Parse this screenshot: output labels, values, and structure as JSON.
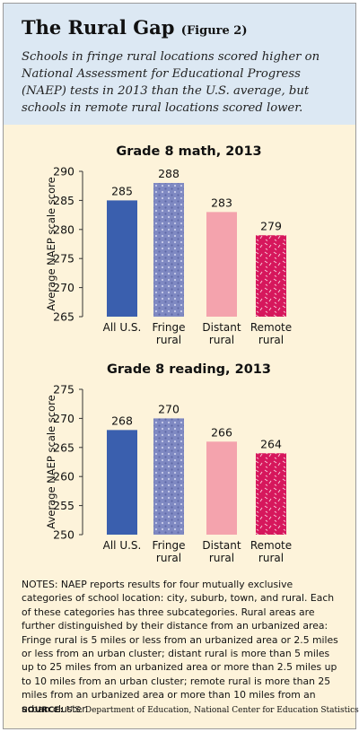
{
  "header": {
    "title": "The Rural Gap",
    "figure_label": "(Figure 2)",
    "subtitle": "Schools in fringe rural locations scored higher on National Assessment for Educational Progress (NAEP) tests in 2013 than the U.S. average, but schools in remote rural locations scored lower."
  },
  "colors": {
    "header_bg": "#dce8f3",
    "panel_bg": "#fdf3da",
    "all_us": "#3a5fae",
    "fringe": "#7f89c2",
    "distant": "#f4a3ad",
    "remote": "#d6175c"
  },
  "chart_data": [
    {
      "type": "bar",
      "title": "Grade 8 math, 2013",
      "ylabel": "Average NAEP scale score",
      "categories": [
        "All U.S.",
        "Fringe rural",
        "Distant rural",
        "Remote rural"
      ],
      "category_lines": [
        [
          "All U.S."
        ],
        [
          "Fringe",
          "rural"
        ],
        [
          "Distant",
          "rural"
        ],
        [
          "Remote",
          "rural"
        ]
      ],
      "values": [
        285,
        288,
        283,
        279
      ],
      "ylim": [
        265,
        290
      ],
      "yticks": [
        265,
        270,
        275,
        280,
        285,
        290
      ],
      "grid": false
    },
    {
      "type": "bar",
      "title": "Grade 8 reading, 2013",
      "ylabel": "Average NAEP scale score",
      "categories": [
        "All U.S.",
        "Fringe rural",
        "Distant rural",
        "Remote rural"
      ],
      "category_lines": [
        [
          "All U.S."
        ],
        [
          "Fringe",
          "rural"
        ],
        [
          "Distant",
          "rural"
        ],
        [
          "Remote",
          "rural"
        ]
      ],
      "values": [
        268,
        270,
        266,
        264
      ],
      "ylim": [
        250,
        275
      ],
      "yticks": [
        250,
        255,
        260,
        265,
        270,
        275
      ],
      "grid": false
    }
  ],
  "notes": "NOTES: NAEP reports results for four mutually exclusive categories of school location: city, suburb, town, and rural. Each of these categories has three subcategories. Rural areas are further distinguished by their distance from an urbanized area: Fringe rural is 5 miles or less from an urbanized area or 2.5 miles or less from an urban cluster; distant rural is more than 5 miles up to 25 miles from an urbanized area or more than 2.5 miles up to 10 miles from an urban cluster; remote rural is more than 25 miles from an urbanized area or more than 10 miles from an urban cluster.",
  "source": {
    "label": "SOURCE:",
    "text": "U.S. Department of Education, National Center for Education Statistics"
  }
}
